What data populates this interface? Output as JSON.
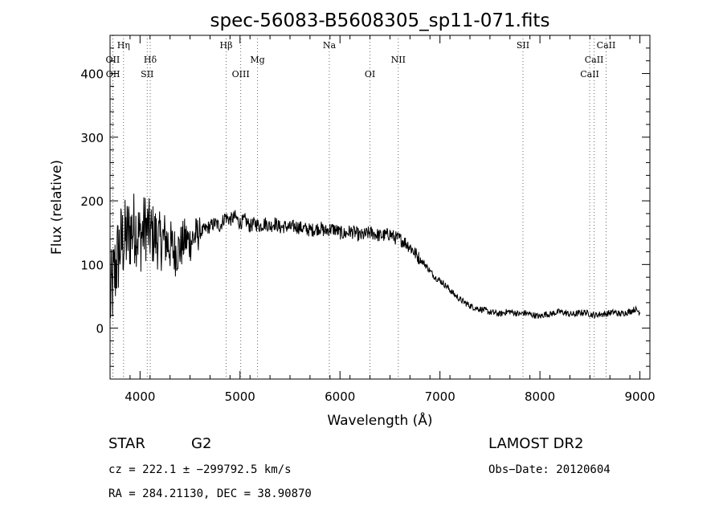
{
  "chart_data": {
    "type": "line",
    "title": "spec-56083-B5608305_sp11-071.fits",
    "xlabel": "Wavelength (Å)",
    "ylabel": "Flux (relative)",
    "xlim": [
      3700,
      9100
    ],
    "ylim": [
      -80,
      460
    ],
    "xticks": [
      4000,
      5000,
      6000,
      7000,
      8000,
      9000
    ],
    "yticks": [
      0,
      100,
      200,
      300,
      400
    ],
    "grid": false,
    "series": [
      {
        "color": "#000000",
        "x": [
          3700,
          3750,
          3800,
          3850,
          3900,
          3950,
          4000,
          4050,
          4100,
          4150,
          4200,
          4250,
          4300,
          4350,
          4400,
          4450,
          4500,
          4550,
          4600,
          4650,
          4700,
          4750,
          4800,
          4850,
          4900,
          4950,
          5000,
          5050,
          5100,
          5150,
          5200,
          5250,
          5300,
          5350,
          5400,
          5450,
          5500,
          5550,
          5600,
          5650,
          5700,
          5750,
          5800,
          5850,
          5900,
          5950,
          6000,
          6050,
          6100,
          6150,
          6200,
          6250,
          6300,
          6350,
          6400,
          6450,
          6500,
          6550,
          6600,
          6650,
          6700,
          6750,
          6800,
          6850,
          6900,
          6950,
          7000,
          7050,
          7100,
          7150,
          7200,
          7250,
          7300,
          7350,
          7400,
          7450,
          7500,
          7550,
          7600,
          7650,
          7700,
          7750,
          7800,
          7850,
          7900,
          7950,
          8000,
          8050,
          8100,
          8150,
          8200,
          8250,
          8300,
          8350,
          8400,
          8450,
          8500,
          8550,
          8600,
          8650,
          8700,
          8750,
          8800,
          8850,
          8900,
          8950,
          9000
        ],
        "values": [
          40,
          90,
          130,
          140,
          150,
          160,
          140,
          160,
          150,
          145,
          135,
          140,
          130,
          120,
          125,
          140,
          135,
          145,
          150,
          155,
          160,
          165,
          160,
          175,
          170,
          175,
          165,
          170,
          160,
          165,
          160,
          165,
          160,
          165,
          158,
          160,
          158,
          160,
          158,
          156,
          154,
          155,
          158,
          152,
          156,
          155,
          150,
          148,
          152,
          150,
          145,
          147,
          150,
          148,
          145,
          146,
          148,
          142,
          140,
          135,
          128,
          118,
          108,
          100,
          90,
          80,
          75,
          68,
          60,
          52,
          45,
          40,
          35,
          32,
          30,
          28,
          25,
          24,
          22,
          25,
          26,
          24,
          22,
          24,
          22,
          20,
          18,
          22,
          22,
          24,
          26,
          24,
          22,
          22,
          24,
          25,
          22,
          20,
          22,
          22,
          24,
          25,
          22,
          24,
          26,
          30,
          25
        ]
      }
    ],
    "line_markers": [
      {
        "label": "Hη",
        "wavelength": 3835,
        "row": 0
      },
      {
        "label": "OII",
        "wavelength": 3727,
        "row": 1
      },
      {
        "label": "OII",
        "wavelength": 3729,
        "row": 2
      },
      {
        "label": "Hδ",
        "wavelength": 4102,
        "row": 1
      },
      {
        "label": "SII",
        "wavelength": 4072,
        "row": 2
      },
      {
        "label": "Hβ",
        "wavelength": 4861,
        "row": 0
      },
      {
        "label": "OIII",
        "wavelength": 5007,
        "row": 2
      },
      {
        "label": "Mg",
        "wavelength": 5175,
        "row": 1
      },
      {
        "label": "Na",
        "wavelength": 5893,
        "row": 0
      },
      {
        "label": "OI",
        "wavelength": 6300,
        "row": 2
      },
      {
        "label": "NII",
        "wavelength": 6583,
        "row": 1
      },
      {
        "label": "SII",
        "wavelength": 7830,
        "row": 0
      },
      {
        "label": "CaII",
        "wavelength": 8662,
        "row": 0
      },
      {
        "label": "CaII",
        "wavelength": 8542,
        "row": 1
      },
      {
        "label": "CaII",
        "wavelength": 8498,
        "row": 2
      }
    ]
  },
  "info": {
    "object_class": "STAR",
    "subclass": "G2",
    "survey": "LAMOST DR2",
    "redshift_line": "cz = 222.1 ± −299792.5 km/s",
    "obs_date": "Obs−Date: 20120604",
    "coords": "RA = 284.21130, DEC =  38.90870"
  }
}
